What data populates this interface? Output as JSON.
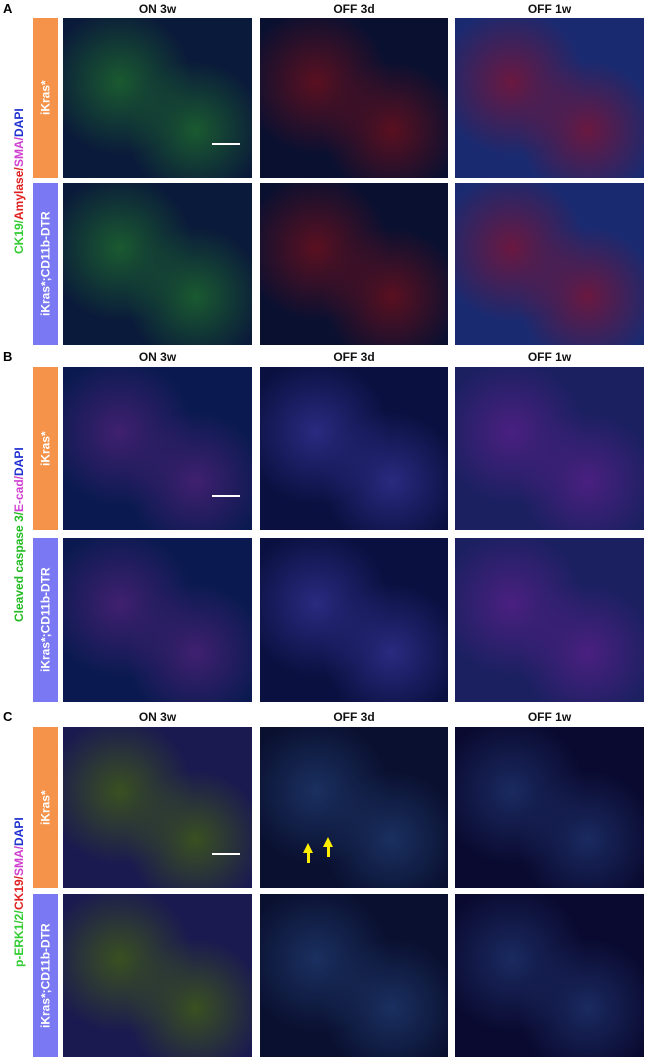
{
  "panels": [
    {
      "letter": "A",
      "columns": [
        "ON 3w",
        "OFF 3d",
        "OFF 1w"
      ],
      "stain": [
        {
          "text": "CK19/",
          "color": "#33cc33"
        },
        {
          "text": "Amylase/",
          "color": "#e02020"
        },
        {
          "text": "SMA/",
          "color": "#d040d0"
        },
        {
          "text": "DAPI",
          "color": "#2030d0"
        }
      ],
      "rows": [
        {
          "label": "iKras*",
          "color": "#f5934a"
        },
        {
          "label": "iKras*;CD11b-DTR",
          "color": "#7a78f2"
        }
      ]
    },
    {
      "letter": "B",
      "columns": [
        "ON 3w",
        "OFF 3d",
        "OFF 1w"
      ],
      "stain": [
        {
          "text": "Cleaved caspase 3/",
          "color": "#22bb22"
        },
        {
          "text": "E-cad/",
          "color": "#d040d0"
        },
        {
          "text": "DAPI",
          "color": "#2030d0"
        }
      ],
      "rows": [
        {
          "label": "iKras*",
          "color": "#f5934a"
        },
        {
          "label": "iKras*;CD11b-DTR",
          "color": "#7a78f2"
        }
      ]
    },
    {
      "letter": "C",
      "columns": [
        "ON 3w",
        "OFF 3d",
        "OFF 1w"
      ],
      "stain": [
        {
          "text": "p-ERK1/2/",
          "color": "#33cc33"
        },
        {
          "text": "CK19/",
          "color": "#e02020"
        },
        {
          "text": "SMA/",
          "color": "#d040d0"
        },
        {
          "text": "DAPI",
          "color": "#2030d0"
        }
      ],
      "rows": [
        {
          "label": "iKras*",
          "color": "#f5934a"
        },
        {
          "label": "iKras*;CD11b-DTR",
          "color": "#7a78f2"
        }
      ]
    }
  ]
}
